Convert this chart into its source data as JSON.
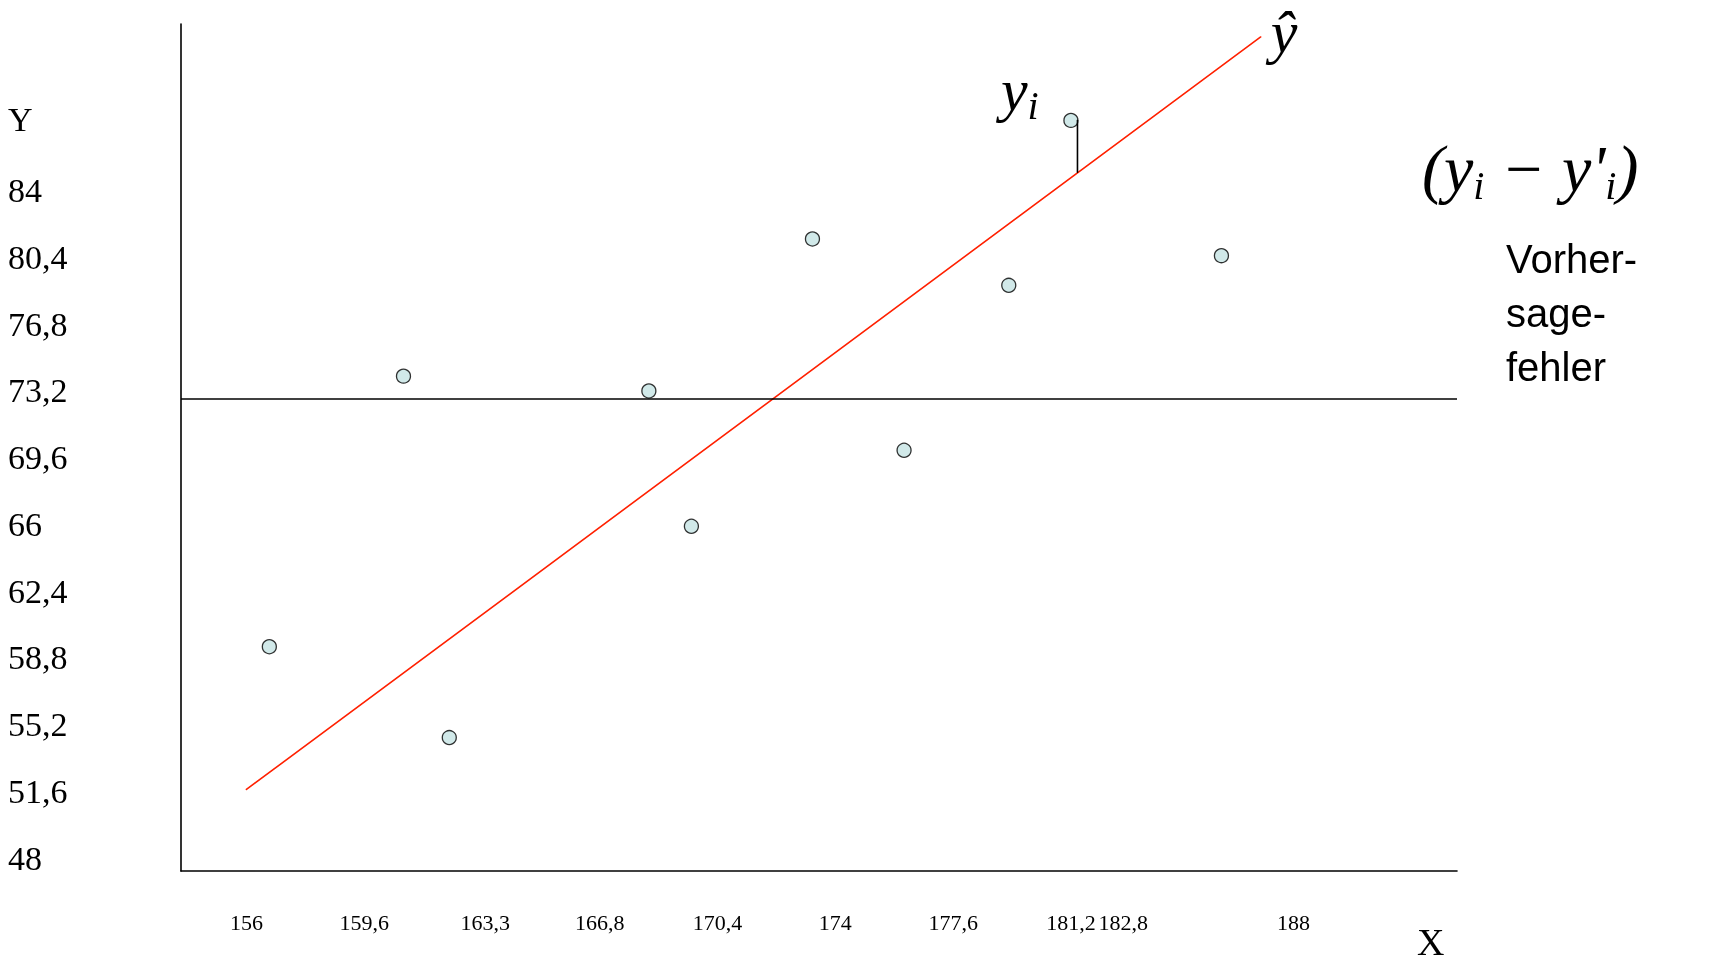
{
  "chart_data": {
    "type": "scatter",
    "xlabel": "X",
    "ylabel": "Y",
    "xlim": [
      154,
      193
    ],
    "ylim": [
      47.3,
      93
    ],
    "xticks": [
      156,
      {
        "value": 159.6,
        "label": "159,6"
      },
      {
        "value": 163.3,
        "label": "163,3"
      },
      {
        "value": 166.8,
        "label": "166,8"
      },
      {
        "value": 170.4,
        "label": "170,4"
      },
      174,
      {
        "value": 177.6,
        "label": "177,6"
      },
      {
        "value": 181.2,
        "label": "181,2"
      },
      {
        "value": 182.8,
        "label": "182,8"
      },
      188
    ],
    "yticks": [
      48,
      {
        "value": 51.6,
        "label": "51,6"
      },
      {
        "value": 55.2,
        "label": "55,2"
      },
      {
        "value": 58.8,
        "label": "58,8"
      },
      {
        "value": 62.4,
        "label": "62,4"
      },
      66,
      {
        "value": 69.6,
        "label": "69,6"
      },
      {
        "value": 73.2,
        "label": "73,2"
      },
      {
        "value": 76.8,
        "label": "76,8"
      },
      {
        "value": 80.4,
        "label": "80,4"
      },
      84
    ],
    "grid": false,
    "marker": "circle",
    "series": [
      {
        "color": "#c6e4e4",
        "x": [
          156.7,
          160.8,
          162.2,
          168.3,
          169.6,
          173.3,
          176.1,
          179.3,
          181.2,
          185.8
        ],
        "values": [
          59.4,
          74.0,
          54.5,
          73.2,
          65.9,
          81.4,
          70.0,
          78.9,
          87.8,
          80.5
        ]
      },
      {
        "type": "line",
        "color": "#ff2000",
        "marker": "none",
        "x": [
          156,
          187
        ],
        "values": [
          51.7,
          92.3
        ]
      },
      {
        "type": "line",
        "color": "#000000",
        "marker": "none",
        "x": [
          181.4,
          181.4
        ],
        "values": [
          87.8,
          85.0
        ]
      }
    ],
    "ref_lines": [
      {
        "axis": "y",
        "value": 72.8,
        "color": "#000000"
      }
    ],
    "annotations": [
      {
        "text": "ŷ",
        "x": 187,
        "y": 92.3
      },
      {
        "text": "y$_{i}$",
        "x": 181.2,
        "y": 87.8
      },
      "(y$_{i}$ − y'$_{i}$)",
      "Vorher-\nsage-\nfehler"
    ]
  }
}
